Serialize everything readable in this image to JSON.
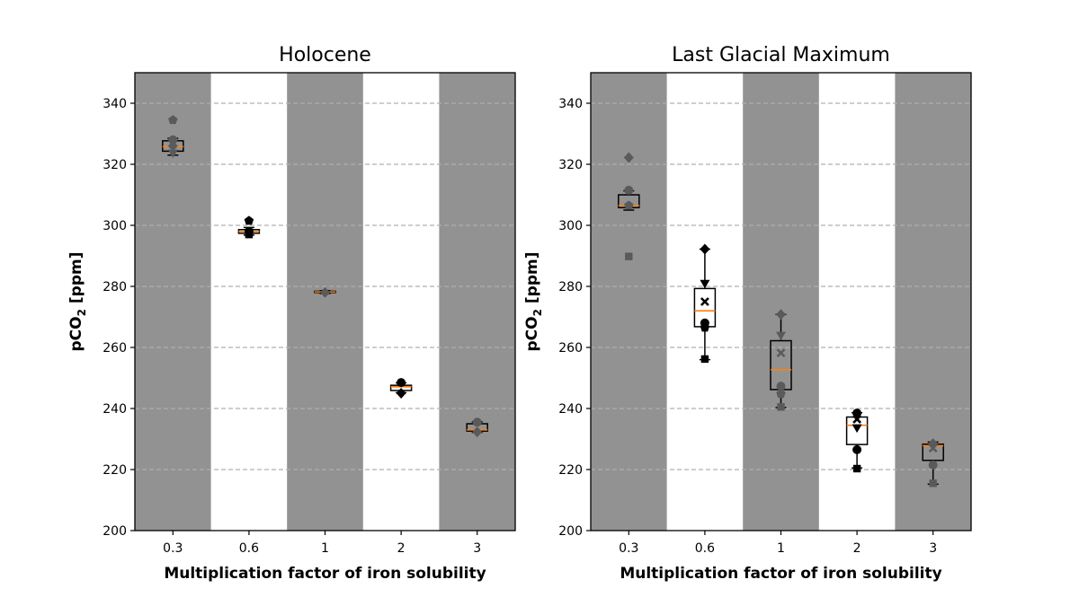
{
  "chart_data": [
    {
      "type": "box",
      "title": "Holocene",
      "xlabel": "Multiplication factor of iron solubility",
      "ylabel_main": "pCO",
      "ylabel_sub": "2",
      "ylabel_unit": " [ppm]",
      "categories": [
        "0.3",
        "0.6",
        "1",
        "2",
        "3"
      ],
      "ylim": [
        200,
        350
      ],
      "yticks": [
        200,
        220,
        240,
        260,
        280,
        300,
        320,
        340
      ],
      "grid": "horizontal-dashed",
      "shaded_background": "alternating-gray",
      "boxes": [
        {
          "category": "0.3",
          "min": 323,
          "q1": 324.3,
          "median": 325.8,
          "q3": 327.7,
          "max": 328.5
        },
        {
          "category": "0.6",
          "min": 296.8,
          "q1": 297.4,
          "median": 298.0,
          "q3": 298.6,
          "max": 299.3
        },
        {
          "category": "1",
          "min": 277.7,
          "q1": 278.0,
          "median": 278.2,
          "q3": 278.4,
          "max": 278.6
        },
        {
          "category": "2",
          "min": 245.2,
          "q1": 245.9,
          "median": 247.1,
          "q3": 247.6,
          "max": 248.4
        },
        {
          "category": "3",
          "min": 232.2,
          "q1": 232.6,
          "median": 233.0,
          "q3": 235.0,
          "max": 235.6
        }
      ],
      "points": [
        {
          "category": "0.3",
          "y": 334.5,
          "marker": "pentagon"
        },
        {
          "category": "0.3",
          "y": 328.0,
          "marker": "circle"
        },
        {
          "category": "0.3",
          "y": 326.0,
          "marker": "diamond"
        },
        {
          "category": "0.3",
          "y": 323.5,
          "marker": "triangle-down"
        },
        {
          "category": "0.6",
          "y": 301.5,
          "marker": "pentagon"
        },
        {
          "category": "0.6",
          "y": 298.0,
          "marker": "circle"
        },
        {
          "category": "0.6",
          "y": 297.0,
          "marker": "square"
        },
        {
          "category": "1",
          "y": 278.0,
          "marker": "diamond"
        },
        {
          "category": "2",
          "y": 248.5,
          "marker": "circle"
        },
        {
          "category": "2",
          "y": 245.0,
          "marker": "diamond"
        },
        {
          "category": "3",
          "y": 235.5,
          "marker": "circle"
        },
        {
          "category": "3",
          "y": 232.3,
          "marker": "diamond"
        }
      ]
    },
    {
      "type": "box",
      "title": "Last Glacial Maximum",
      "xlabel": "Multiplication factor of iron solubility",
      "ylabel_main": "pCO",
      "ylabel_sub": "2",
      "ylabel_unit": " [ppm]",
      "categories": [
        "0.3",
        "0.6",
        "1",
        "2",
        "3"
      ],
      "ylim": [
        200,
        350
      ],
      "yticks": [
        200,
        220,
        240,
        260,
        280,
        300,
        320,
        340
      ],
      "grid": "horizontal-dashed",
      "shaded_background": "alternating-gray",
      "boxes": [
        {
          "category": "0.3",
          "min": 305,
          "q1": 305.8,
          "median": 306.5,
          "q3": 310.0,
          "max": 311.3
        },
        {
          "category": "0.6",
          "min": 256,
          "q1": 266.8,
          "median": 272.0,
          "q3": 279.3,
          "max": 292.2
        },
        {
          "category": "1",
          "min": 240.3,
          "q1": 246.2,
          "median": 252.7,
          "q3": 262.2,
          "max": 270.8
        },
        {
          "category": "2",
          "min": 220.5,
          "q1": 228.2,
          "median": 234.5,
          "q3": 237.2,
          "max": 238.6
        },
        {
          "category": "3",
          "min": 215.2,
          "q1": 223.0,
          "median": 227.8,
          "q3": 228.3,
          "max": 229.0
        }
      ],
      "points": [
        {
          "category": "0.3",
          "y": 322.2,
          "marker": "diamond"
        },
        {
          "category": "0.3",
          "y": 311.5,
          "marker": "circle"
        },
        {
          "category": "0.3",
          "y": 306.5,
          "marker": "pentagon"
        },
        {
          "category": "0.3",
          "y": 289.8,
          "marker": "square"
        },
        {
          "category": "0.6",
          "y": 292.2,
          "marker": "diamond"
        },
        {
          "category": "0.6",
          "y": 280.8,
          "marker": "triangle-down"
        },
        {
          "category": "0.6",
          "y": 275.0,
          "marker": "x"
        },
        {
          "category": "0.6",
          "y": 268.0,
          "marker": "circle"
        },
        {
          "category": "0.6",
          "y": 266.5,
          "marker": "pentagon"
        },
        {
          "category": "0.6",
          "y": 256.2,
          "marker": "square"
        },
        {
          "category": "1",
          "y": 270.8,
          "marker": "diamond"
        },
        {
          "category": "1",
          "y": 263.8,
          "marker": "triangle-down"
        },
        {
          "category": "1",
          "y": 258.2,
          "marker": "x"
        },
        {
          "category": "1",
          "y": 247.3,
          "marker": "circle"
        },
        {
          "category": "1",
          "y": 244.8,
          "marker": "pentagon"
        },
        {
          "category": "1",
          "y": 240.5,
          "marker": "square"
        },
        {
          "category": "2",
          "y": 238.5,
          "marker": "circle"
        },
        {
          "category": "2",
          "y": 236.5,
          "marker": "x"
        },
        {
          "category": "2",
          "y": 233.5,
          "marker": "triangle-down"
        },
        {
          "category": "2",
          "y": 226.5,
          "marker": "circle"
        },
        {
          "category": "2",
          "y": 220.3,
          "marker": "square"
        },
        {
          "category": "3",
          "y": 228.5,
          "marker": "diamond"
        },
        {
          "category": "3",
          "y": 227.0,
          "marker": "x"
        },
        {
          "category": "3",
          "y": 221.5,
          "marker": "circle"
        },
        {
          "category": "3",
          "y": 215.5,
          "marker": "square"
        }
      ]
    }
  ],
  "colors": {
    "shade": "#929292",
    "grid": "#b0b0b0",
    "median": "#ff7f0e",
    "box": "#000000",
    "marker_on_gray": "#5a5a5a",
    "marker_on_white": "#000000"
  }
}
